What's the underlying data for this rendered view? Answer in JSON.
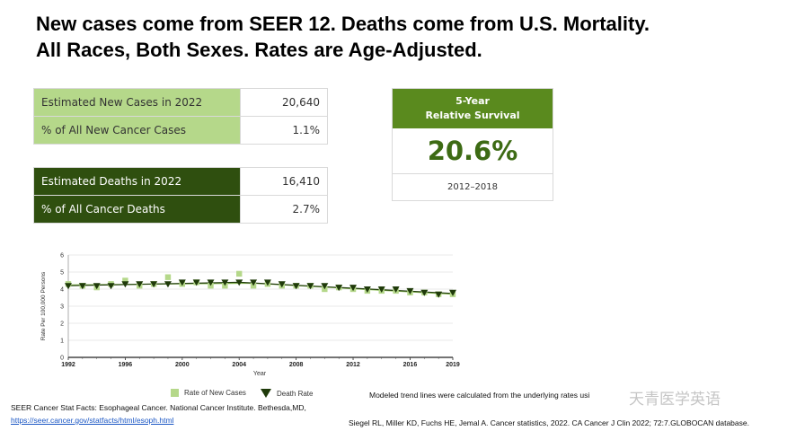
{
  "title": {
    "line1": "New cases come from SEER 12. Deaths come from U.S. Mortality.",
    "line2": "All Races, Both Sexes. Rates are Age-Adjusted."
  },
  "new_cases": {
    "row1_label": "Estimated New Cases in 2022",
    "row1_value": "20,640",
    "row2_label": "% of All New Cancer Cases",
    "row2_value": "1.1%"
  },
  "deaths": {
    "row1_label": "Estimated Deaths in 2022",
    "row1_value": "16,410",
    "row2_label": "% of All Cancer Deaths",
    "row2_value": "2.7%"
  },
  "survival": {
    "header_line1": "5-Year",
    "header_line2": "Relative Survival",
    "value": "20.6%",
    "period": "2012–2018"
  },
  "chart_data": {
    "type": "scatter",
    "xlabel": "Year",
    "ylabel": "Rate Per 100,000 Persons",
    "xlim": [
      1992,
      2019
    ],
    "ylim": [
      0,
      6
    ],
    "x_ticks": [
      "1992",
      "1996",
      "2000",
      "2004",
      "2008",
      "2012",
      "2016",
      "2019"
    ],
    "y_ticks": [
      "0",
      "1",
      "2",
      "3",
      "4",
      "5",
      "6"
    ],
    "grid": true,
    "legend_placement": "bottom",
    "series": [
      {
        "name": "Rate of New Cases",
        "marker": "square",
        "color": "#b5d88a",
        "x": [
          1992,
          1993,
          1994,
          1995,
          1996,
          1997,
          1998,
          1999,
          2000,
          2001,
          2002,
          2003,
          2004,
          2005,
          2006,
          2007,
          2008,
          2009,
          2010,
          2011,
          2012,
          2013,
          2014,
          2015,
          2016,
          2017,
          2018,
          2019
        ],
        "y": [
          4.3,
          4.2,
          4.1,
          4.3,
          4.5,
          4.2,
          4.3,
          4.7,
          4.3,
          4.4,
          4.2,
          4.2,
          4.9,
          4.2,
          4.3,
          4.2,
          4.2,
          4.2,
          4.0,
          4.1,
          4.0,
          3.9,
          3.9,
          3.9,
          3.8,
          3.8,
          3.7,
          3.7
        ]
      },
      {
        "name": "Death Rate",
        "marker": "triangle",
        "color": "#1f3a0a",
        "x": [
          1992,
          1993,
          1994,
          1995,
          1996,
          1997,
          1998,
          1999,
          2000,
          2001,
          2002,
          2003,
          2004,
          2005,
          2006,
          2007,
          2008,
          2009,
          2010,
          2011,
          2012,
          2013,
          2014,
          2015,
          2016,
          2017,
          2018,
          2019
        ],
        "y": [
          4.2,
          4.2,
          4.2,
          4.2,
          4.3,
          4.3,
          4.3,
          4.3,
          4.4,
          4.4,
          4.4,
          4.4,
          4.4,
          4.4,
          4.4,
          4.3,
          4.2,
          4.2,
          4.2,
          4.1,
          4.1,
          4.0,
          4.0,
          4.0,
          3.9,
          3.8,
          3.7,
          3.8
        ]
      }
    ],
    "trend": {
      "new_cases": [
        [
          1992,
          4.25
        ],
        [
          2005,
          4.35
        ],
        [
          2019,
          3.7
        ]
      ],
      "deaths": [
        [
          1992,
          4.2
        ],
        [
          2004,
          4.4
        ],
        [
          2019,
          3.75
        ]
      ]
    }
  },
  "legend": {
    "new_cases_label": "Rate of New Cases",
    "death_label": "Death Rate"
  },
  "notes": {
    "trend_note": "Modeled trend lines were calculated from the underlying rates usi",
    "source_line1": "SEER Cancer Stat Facts: Esophageal Cancer. National Cancer Institute. Bethesda,MD,",
    "source_link": "https://seer.cancer.gov/statfacts/html/esoph.html",
    "citation": "Siegel RL, Miller KD, Fuchs HE, Jemal A. Cancer statistics, 2022. CA Cancer J Clin 2022; 72:7.GLOBOCAN database.",
    "watermark": "天青医学英语"
  }
}
